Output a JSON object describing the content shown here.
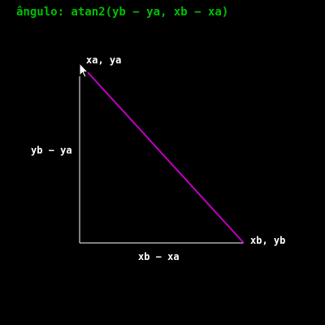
{
  "canvas": {
    "title": "ângulo: atan2(yb − ya, xb − xa)",
    "point_a_label": "xa, ya",
    "point_b_label": "xb, yb",
    "dy_label": "yb − ya",
    "dx_label": "xb − xa",
    "colors": {
      "background": "#000000",
      "title": "#00c000",
      "axes": "#ffffff",
      "hypotenuse": "#c000c0",
      "labels": "#ffffff"
    }
  }
}
